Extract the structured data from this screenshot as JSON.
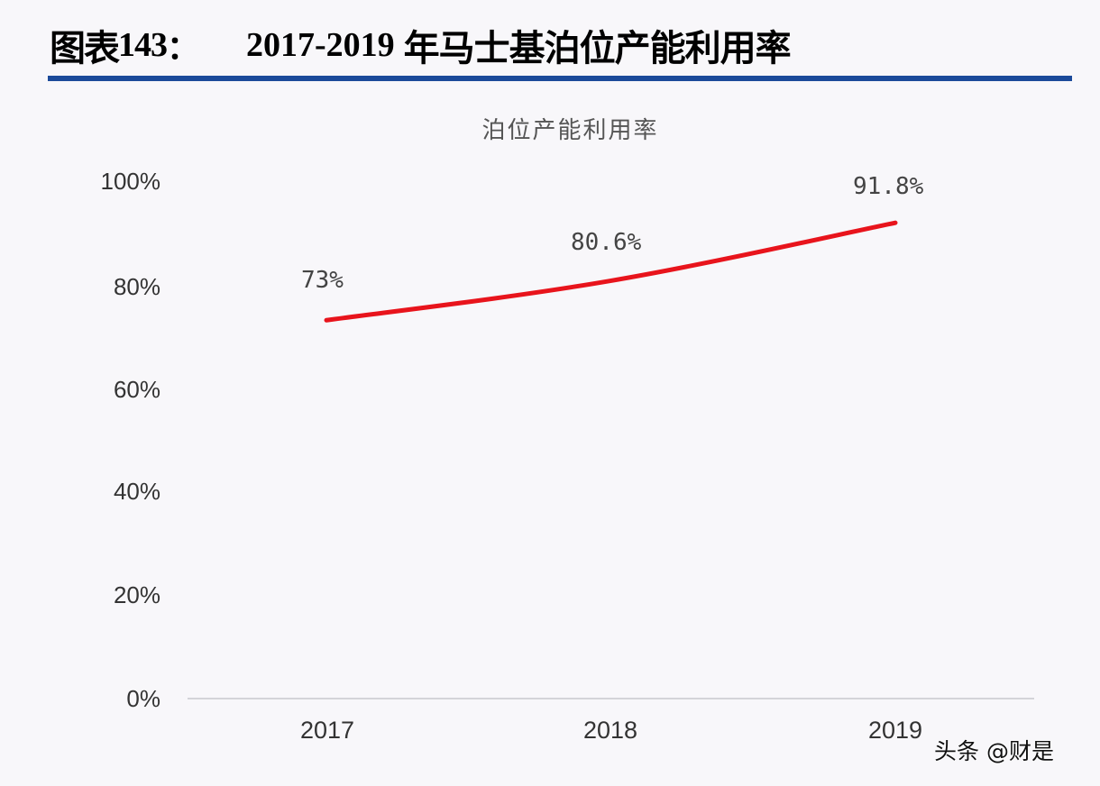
{
  "figure": {
    "prefix": "图表",
    "number": "143",
    "colon": "：",
    "years": "2017-2019",
    "title_cn": "年马士基泊位产能利用率",
    "rule_color": "#1b4a9a"
  },
  "watermark": "头条 @财是",
  "chart_data": {
    "type": "line",
    "title": "泊位产能利用率",
    "categories": [
      "2017",
      "2018",
      "2019"
    ],
    "series": [
      {
        "name": "泊位产能利用率",
        "values": [
          73,
          80.6,
          91.8
        ],
        "labels": [
          "73%",
          "80.6%",
          "91.8%"
        ],
        "color": "#e8141c"
      }
    ],
    "xlabel": "",
    "ylabel": "",
    "ylim": [
      0,
      100
    ],
    "yticks": [
      "0%",
      "20%",
      "40%",
      "60%",
      "80%",
      "100%"
    ],
    "grid": false,
    "legend": "none"
  }
}
